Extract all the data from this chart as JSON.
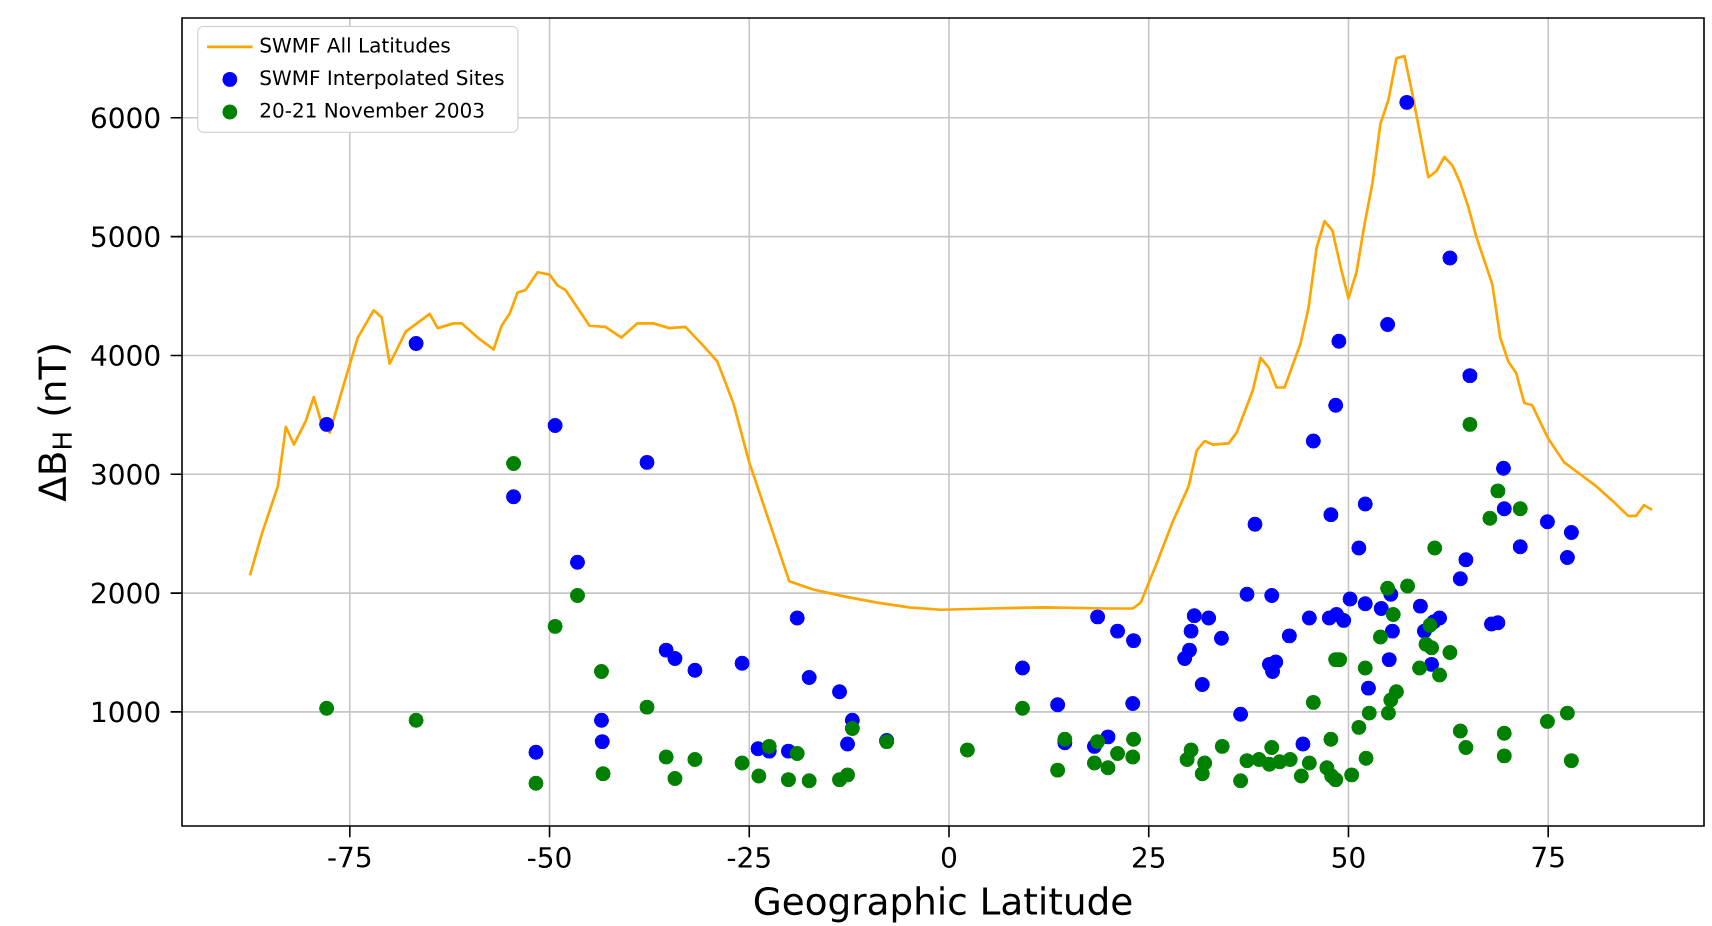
{
  "chart_data": {
    "type": "scatter",
    "xlabel": "Geographic Latitude",
    "ylabel": "ΔB$_{H}$ (nT)",
    "xlim": [
      -96,
      94.5
    ],
    "ylim": [
      40,
      6840
    ],
    "xticks": [
      -75,
      -50,
      -25,
      0,
      25,
      50,
      75
    ],
    "yticks": [
      1000,
      2000,
      3000,
      4000,
      5000,
      6000
    ],
    "grid": true,
    "legend": "top left",
    "series": [
      {
        "name": "SWMF All Latitudes",
        "type": "line",
        "color": "#ffa500",
        "x": [
          -87.5,
          -86,
          -84,
          -83,
          -82,
          -80.5,
          -79.5,
          -78.5,
          -77.5,
          -76,
          -74,
          -72,
          -71,
          -70,
          -68,
          -66,
          -65,
          -64,
          -62,
          -61,
          -59,
          -57,
          -56,
          -55,
          -54,
          -53,
          -51.5,
          -50,
          -49,
          -48,
          -46,
          -45,
          -43,
          -41,
          -39,
          -37,
          -35,
          -33,
          -31,
          -29,
          -27,
          -25,
          -23,
          -21,
          -20,
          -17,
          -13,
          -9,
          -5,
          -1,
          5,
          12,
          20,
          23,
          24,
          26,
          28,
          30,
          31,
          32,
          33,
          35,
          36,
          38,
          39,
          40,
          41,
          42,
          44,
          45,
          46,
          47,
          48,
          49,
          50,
          51,
          52,
          53,
          54,
          55,
          56,
          57,
          58,
          59,
          60,
          61,
          62,
          63,
          64,
          65,
          66,
          67,
          68,
          69,
          70,
          71,
          72,
          73,
          75,
          77,
          79,
          81,
          83,
          85,
          86,
          87,
          88
        ],
        "values": [
          2150,
          2500,
          2900,
          3400,
          3250,
          3450,
          3650,
          3420,
          3350,
          3700,
          4150,
          4380,
          4320,
          3930,
          4200,
          4300,
          4350,
          4230,
          4270,
          4270,
          4150,
          4050,
          4250,
          4350,
          4530,
          4550,
          4700,
          4680,
          4590,
          4550,
          4350,
          4250,
          4240,
          4150,
          4270,
          4270,
          4230,
          4240,
          4100,
          3950,
          3600,
          3100,
          2700,
          2300,
          2100,
          2030,
          1970,
          1920,
          1880,
          1860,
          1870,
          1880,
          1870,
          1870,
          1920,
          2250,
          2600,
          2900,
          3200,
          3280,
          3250,
          3260,
          3350,
          3700,
          3980,
          3900,
          3730,
          3730,
          4100,
          4400,
          4900,
          5130,
          5050,
          4750,
          4480,
          4700,
          5100,
          5450,
          5950,
          6150,
          6500,
          6520,
          6200,
          5850,
          5500,
          5550,
          5670,
          5600,
          5450,
          5250,
          5000,
          4800,
          4600,
          4150,
          3950,
          3850,
          3600,
          3580,
          3300,
          3100,
          3000,
          2900,
          2780,
          2650,
          2650,
          2740,
          2700
        ]
      },
      {
        "name": "SWMF Interpolated Sites",
        "marker": "circle",
        "color": "#0000ff",
        "x": [
          -77.9,
          -66.7,
          -54.5,
          -49.3,
          -46.5,
          -37.8,
          -35.4,
          -34.3,
          -31.8,
          -25.9,
          -43.5,
          -43.4,
          -51.7,
          -23.9,
          -22.5,
          -19.0,
          -17.5,
          -13.7,
          -12.1,
          -12.7,
          -7.8,
          -20.1,
          9.2,
          13.6,
          18.6,
          21.1,
          23.1,
          23.0,
          19.9,
          18.2,
          14.5,
          57.3,
          62.7,
          54.9,
          48.8,
          48.4,
          45.6,
          65.2,
          69.4,
          38.3,
          47.8,
          52.1,
          51.3,
          69.5,
          71.5,
          74.9,
          77.9,
          77.4,
          64.7,
          64.0,
          37.3,
          40.4,
          50.2,
          52.1,
          54.1,
          55.3,
          59.0,
          61.4,
          60.7,
          59.5,
          55.5,
          45.1,
          47.6,
          48.5,
          49.4,
          30.7,
          32.5,
          30.3,
          34.1,
          42.6,
          30.1,
          29.5,
          40.1,
          40.9,
          40.5,
          55.1,
          60.4,
          31.7,
          52.5,
          36.5,
          44.3,
          67.9,
          68.7
        ],
        "values": [
          3420,
          4100,
          2810,
          3410,
          2260,
          3100,
          1520,
          1450,
          1350,
          1410,
          930,
          750,
          660,
          690,
          670,
          1790,
          1290,
          1170,
          930,
          730,
          760,
          670,
          1370,
          1060,
          1800,
          1680,
          1600,
          1070,
          790,
          710,
          740,
          6130,
          4820,
          4260,
          4120,
          3580,
          3280,
          3830,
          3050,
          2580,
          2660,
          2750,
          2380,
          2710,
          2390,
          2600,
          2510,
          2300,
          2280,
          2120,
          1990,
          1980,
          1950,
          1910,
          1870,
          1990,
          1890,
          1790,
          1760,
          1680,
          1680,
          1790,
          1790,
          1820,
          1770,
          1810,
          1790,
          1680,
          1620,
          1640,
          1520,
          1450,
          1400,
          1420,
          1340,
          1440,
          1400,
          1230,
          1200,
          980,
          730,
          1740,
          1750
        ]
      },
      {
        "name": "20-21 November 2003",
        "marker": "circle",
        "color": "#008000",
        "x": [
          -77.9,
          -66.7,
          -54.5,
          -49.3,
          -46.5,
          -43.5,
          -37.8,
          -51.7,
          -43.3,
          -35.4,
          -34.3,
          -31.8,
          -25.9,
          -23.8,
          -22.5,
          -19.0,
          -20.1,
          -17.5,
          -13.7,
          -12.7,
          -12.1,
          -7.8,
          2.3,
          9.2,
          13.6,
          14.5,
          18.6,
          18.2,
          19.9,
          21.1,
          23.1,
          23.0,
          65.2,
          68.7,
          67.7,
          71.5,
          60.8,
          54.9,
          57.4,
          55.6,
          60.2,
          54.0,
          59.7,
          60.4,
          62.7,
          58.9,
          61.4,
          48.4,
          48.9,
          52.1,
          45.6,
          56.0,
          55.3,
          55.0,
          52.6,
          51.3,
          47.8,
          52.2,
          74.9,
          77.4,
          64.0,
          64.7,
          69.5,
          69.5,
          77.9,
          34.2,
          30.3,
          29.8,
          32.0,
          31.7,
          36.5,
          37.3,
          38.8,
          40.4,
          40.1,
          41.4,
          42.7,
          45.1,
          44.1,
          47.3,
          47.9,
          48.4,
          50.4
        ],
        "values": [
          1030,
          930,
          3090,
          1720,
          1980,
          1340,
          1040,
          400,
          480,
          620,
          440,
          600,
          570,
          460,
          710,
          650,
          430,
          420,
          430,
          470,
          860,
          750,
          680,
          1030,
          510,
          770,
          750,
          570,
          530,
          650,
          770,
          620,
          3420,
          2860,
          2630,
          2710,
          2380,
          2040,
          2060,
          1820,
          1730,
          1630,
          1570,
          1540,
          1500,
          1370,
          1310,
          1440,
          1440,
          1370,
          1080,
          1170,
          1100,
          990,
          990,
          870,
          770,
          610,
          920,
          990,
          840,
          700,
          820,
          630,
          590,
          710,
          680,
          600,
          570,
          480,
          420,
          590,
          600,
          700,
          560,
          580,
          600,
          570,
          460,
          530,
          460,
          430,
          470
        ]
      }
    ]
  }
}
